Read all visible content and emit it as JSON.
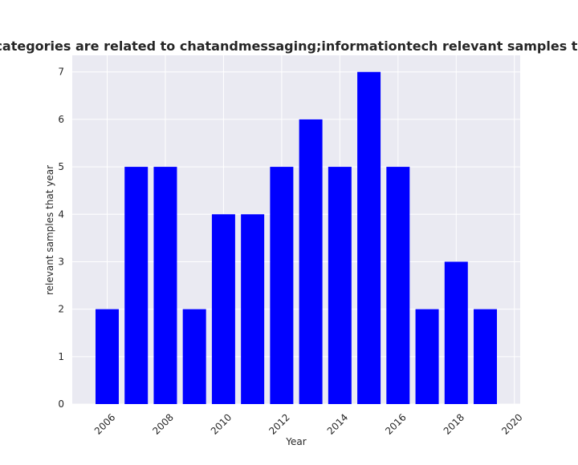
{
  "chart_data": {
    "type": "bar",
    "title": "Number of app whose categories are related to chatandmessaging;informationtech relevant samples that year in privacy policy",
    "xlabel": "Year",
    "ylabel": "relevant samples that year",
    "x": [
      2006,
      2007,
      2008,
      2009,
      2010,
      2011,
      2012,
      2013,
      2014,
      2015,
      2016,
      2017,
      2018,
      2019
    ],
    "values": [
      2,
      5,
      5,
      2,
      4,
      4,
      5,
      6,
      5,
      7,
      5,
      2,
      3,
      2
    ],
    "xlim": [
      2004.8,
      2020.2
    ],
    "ylim": [
      0,
      7.35
    ],
    "xticks": [
      "2006",
      "2008",
      "2010",
      "2012",
      "2014",
      "2016",
      "2018",
      "2020"
    ],
    "yticks": [
      "0",
      "1",
      "2",
      "3",
      "4",
      "5",
      "6",
      "7"
    ],
    "grid": true,
    "colors": {
      "bar": "#0000ff",
      "plot_background": "#eaeaf2",
      "grid": "#ffffff",
      "text": "#262626"
    }
  }
}
